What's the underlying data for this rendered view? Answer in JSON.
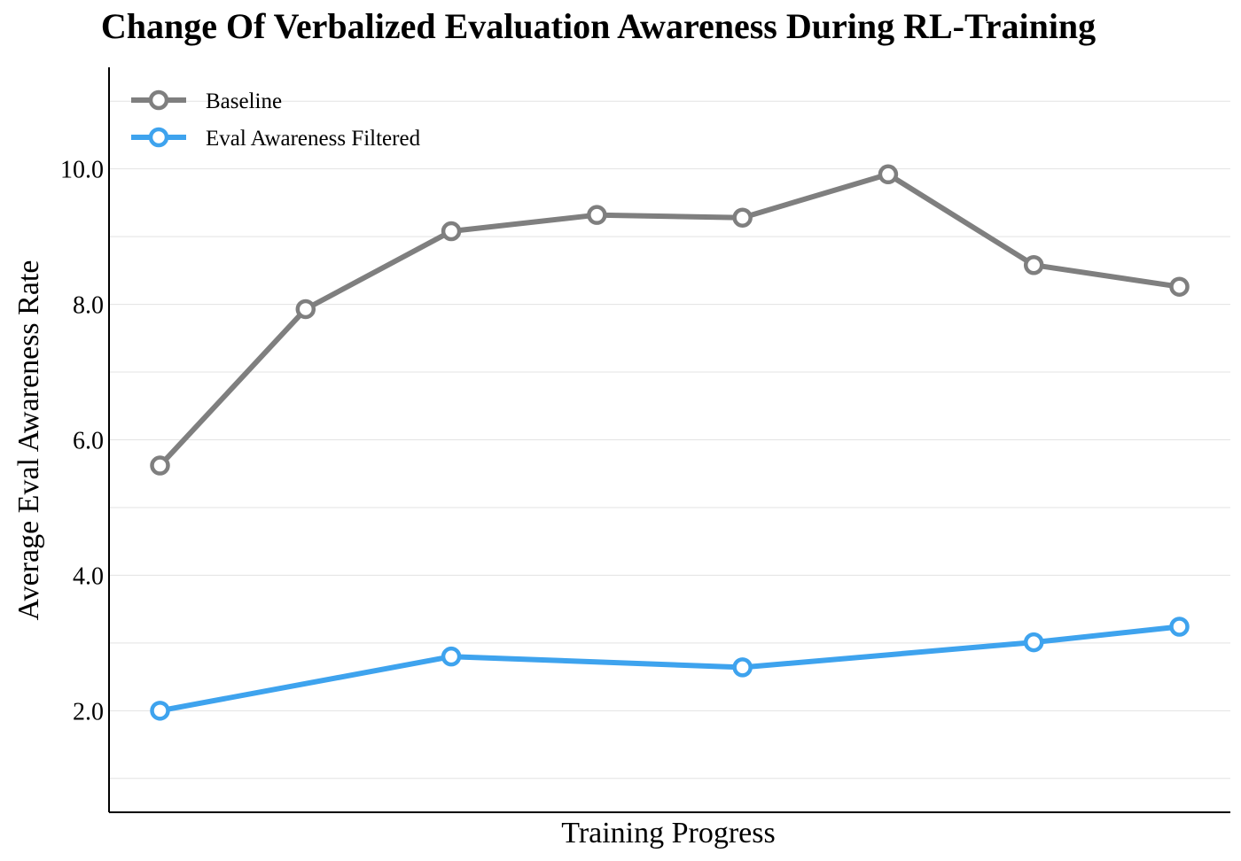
{
  "chart_data": {
    "type": "line",
    "title": "Change Of Verbalized Evaluation Awareness During RL-Training",
    "xlabel": "Training Progress",
    "ylabel": "Average Eval Awareness Rate",
    "ylim": [
      0.5,
      11.5
    ],
    "yticks": [
      2.0,
      4.0,
      6.0,
      8.0,
      10.0
    ],
    "ytick_labels": [
      "2.0",
      "4.0",
      "6.0",
      "8.0",
      "10.0"
    ],
    "minor_grid": [
      1.0,
      3.0,
      5.0,
      7.0,
      9.0,
      11.0
    ],
    "xlim": [
      0.65,
      8.35
    ],
    "grid": true,
    "legend_position": "top-left",
    "series": [
      {
        "name": "Baseline",
        "color": "#7f7f7f",
        "x": [
          1,
          2,
          3,
          4,
          5,
          6,
          7,
          8
        ],
        "y": [
          5.62,
          7.93,
          9.08,
          9.32,
          9.28,
          9.92,
          8.58,
          8.26
        ]
      },
      {
        "name": "Eval Awareness Filtered",
        "color": "#3ea3ee",
        "x": [
          1,
          3,
          5,
          7,
          8
        ],
        "y": [
          2.0,
          2.8,
          2.64,
          3.01,
          3.24
        ]
      }
    ]
  }
}
